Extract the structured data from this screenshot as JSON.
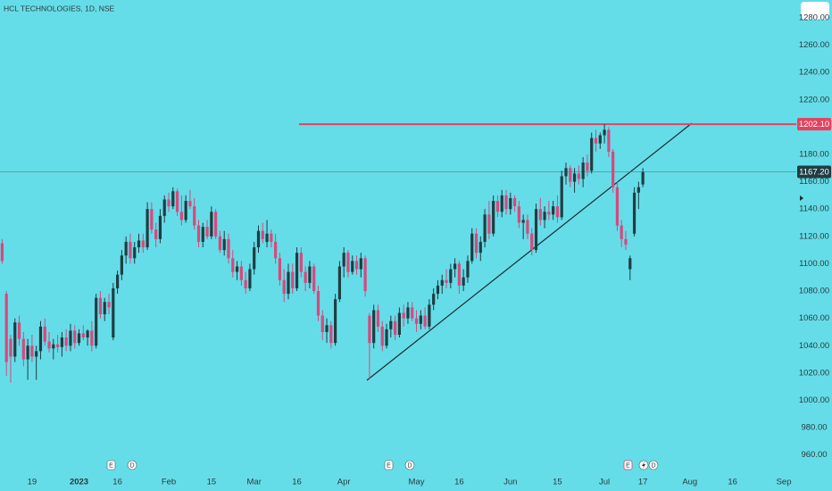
{
  "chart_data": {
    "type": "candlestick",
    "title": "HCL TECHNOLOGIES, 1D, NSE",
    "categories": [
      null,
      null,
      null,
      null,
      null,
      null,
      null,
      "19",
      null,
      null,
      null,
      null,
      null,
      null,
      null,
      null,
      null,
      null,
      "2023",
      null,
      null,
      null,
      null,
      null,
      null,
      null,
      null,
      "16",
      null,
      null,
      null,
      null,
      null,
      null,
      null,
      null,
      null,
      null,
      null,
      "Feb",
      null,
      null,
      null,
      null,
      null,
      null,
      null,
      null,
      null,
      "15",
      null,
      null,
      null,
      null,
      null,
      null,
      null,
      null,
      null,
      "Mar",
      null,
      null,
      null,
      null,
      null,
      null,
      null,
      null,
      null,
      "16",
      null,
      null,
      null,
      null,
      null,
      null,
      null,
      null,
      null,
      null,
      "Apr",
      null,
      null,
      null,
      null,
      null,
      null,
      null,
      null,
      null,
      null,
      null,
      null,
      null,
      null,
      null,
      null,
      "May",
      null,
      null,
      null,
      null,
      null,
      null,
      null,
      null,
      null,
      "16",
      null,
      null,
      null,
      null,
      null,
      null,
      null,
      null,
      null,
      null,
      null,
      "Jun",
      null,
      null,
      null,
      null,
      null,
      null,
      null,
      null,
      null,
      null,
      "15",
      null,
      null,
      null,
      null,
      null,
      null,
      null,
      null,
      null,
      null,
      "Jul",
      null,
      null,
      null,
      null,
      null,
      null,
      null,
      null,
      "17",
      null,
      null,
      null,
      null,
      null,
      null,
      null,
      null,
      null,
      null,
      "Aug",
      null,
      null,
      null,
      null,
      null,
      null,
      null,
      null,
      null,
      "16",
      null,
      null,
      null,
      null,
      null,
      null,
      null,
      null,
      null,
      null,
      null,
      "Sep",
      null,
      null
    ],
    "open": [
      1115,
      1078,
      1045,
      1032,
      1057,
      1045,
      1030,
      1040,
      1032,
      1036,
      1054,
      1043,
      1038,
      1041,
      1039,
      1046,
      1040,
      1051,
      1042,
      1049,
      1046,
      1051,
      1040,
      1075,
      1063,
      1072,
      1046,
      1082,
      1092,
      1106,
      1116,
      1104,
      1112,
      1117,
      1112,
      1140,
      1125,
      1118,
      1135,
      1147,
      1142,
      1153,
      1138,
      1132,
      1146,
      1142,
      1128,
      1116,
      1127,
      1120,
      1138,
      1120,
      1110,
      1118,
      1104,
      1094,
      1098,
      1088,
      1082,
      1096,
      1112,
      1124,
      1116,
      1122,
      1116,
      1104,
      1088,
      1078,
      1094,
      1082,
      1108,
      1094,
      1086,
      1098,
      1080,
      1062,
      1050,
      1055,
      1042,
      1074,
      1098,
      1108,
      1094,
      1102,
      1096,
      1104,
      1062,
      1042,
      1066,
      1054,
      1040,
      1052,
      1058,
      1048,
      1064,
      1060,
      1068,
      1060,
      1056,
      1062,
      1054,
      1070,
      1078,
      1084,
      1088,
      1086,
      1096,
      1100,
      1084,
      1090,
      1102,
      1122,
      1108,
      1116,
      1136,
      1122,
      1146,
      1138,
      1150,
      1140,
      1148,
      1142,
      1130,
      1132,
      1122,
      1110,
      1140,
      1132,
      1138,
      1136,
      1142,
      1134,
      1164,
      1170,
      1160,
      1166,
      1162,
      1174,
      1168,
      1192,
      1188,
      1194,
      1198,
      1182,
      1156,
      1128,
      1118,
      1096,
      1122,
      1152,
      1158,
      null,
      null,
      null,
      null,
      null,
      null,
      null,
      null,
      null,
      null,
      null,
      null,
      null,
      null,
      null,
      null,
      null,
      null,
      null,
      null,
      null,
      null,
      null,
      null,
      null,
      null,
      null,
      null,
      null,
      null,
      null,
      null,
      null,
      null,
      null
    ],
    "high": [
      1118,
      1080,
      1048,
      1060,
      1062,
      1050,
      1045,
      1048,
      1040,
      1058,
      1060,
      1050,
      1045,
      1048,
      1050,
      1052,
      1056,
      1055,
      1052,
      1055,
      1052,
      1058,
      1078,
      1080,
      1075,
      1078,
      1086,
      1095,
      1110,
      1120,
      1122,
      1116,
      1122,
      1122,
      1145,
      1145,
      1130,
      1140,
      1150,
      1152,
      1156,
      1155,
      1150,
      1150,
      1154,
      1148,
      1132,
      1130,
      1132,
      1142,
      1140,
      1124,
      1124,
      1122,
      1110,
      1102,
      1102,
      1094,
      1100,
      1116,
      1128,
      1130,
      1132,
      1125,
      1122,
      1108,
      1096,
      1100,
      1100,
      1112,
      1112,
      1098,
      1102,
      1100,
      1084,
      1066,
      1060,
      1058,
      1078,
      1102,
      1112,
      1110,
      1106,
      1106,
      1108,
      1106,
      1064,
      1070,
      1070,
      1058,
      1056,
      1062,
      1062,
      1068,
      1070,
      1072,
      1072,
      1066,
      1066,
      1068,
      1074,
      1082,
      1088,
      1092,
      1096,
      1100,
      1104,
      1102,
      1096,
      1106,
      1126,
      1126,
      1120,
      1140,
      1146,
      1150,
      1150,
      1154,
      1154,
      1152,
      1150,
      1146,
      1136,
      1136,
      1126,
      1144,
      1148,
      1142,
      1146,
      1146,
      1150,
      1168,
      1174,
      1172,
      1170,
      1172,
      1178,
      1180,
      1196,
      1198,
      1196,
      1202.1,
      1200,
      1184,
      1160,
      1132,
      1124,
      1106,
      1156,
      1160,
      1170,
      null,
      null,
      null,
      null,
      null,
      null,
      null,
      null,
      null,
      null,
      null,
      null,
      null,
      null,
      null,
      null,
      null,
      null,
      null,
      null,
      null,
      null,
      null,
      null,
      null,
      null,
      null,
      null,
      null,
      null,
      null,
      null,
      null,
      null,
      null
    ],
    "low": [
      1100,
      1018,
      1013,
      1028,
      1040,
      1025,
      1015,
      1028,
      1015,
      1030,
      1040,
      1035,
      1030,
      1035,
      1032,
      1036,
      1036,
      1038,
      1040,
      1044,
      1040,
      1036,
      1038,
      1060,
      1058,
      1063,
      1044,
      1078,
      1088,
      1100,
      1100,
      1100,
      1108,
      1108,
      1110,
      1122,
      1112,
      1115,
      1130,
      1138,
      1140,
      1135,
      1128,
      1130,
      1140,
      1125,
      1112,
      1112,
      1118,
      1118,
      1118,
      1108,
      1106,
      1100,
      1090,
      1088,
      1084,
      1078,
      1080,
      1092,
      1108,
      1115,
      1112,
      1112,
      1100,
      1084,
      1072,
      1074,
      1078,
      1080,
      1090,
      1080,
      1082,
      1078,
      1058,
      1044,
      1042,
      1038,
      1040,
      1072,
      1090,
      1090,
      1092,
      1092,
      1090,
      1076,
      1016,
      1038,
      1050,
      1036,
      1038,
      1046,
      1044,
      1046,
      1054,
      1056,
      1058,
      1050,
      1052,
      1052,
      1052,
      1066,
      1074,
      1078,
      1082,
      1082,
      1090,
      1078,
      1080,
      1086,
      1100,
      1104,
      1102,
      1112,
      1118,
      1120,
      1134,
      1134,
      1136,
      1136,
      1138,
      1126,
      1118,
      1118,
      1106,
      1108,
      1128,
      1126,
      1132,
      1132,
      1130,
      1132,
      1158,
      1156,
      1152,
      1158,
      1156,
      1164,
      1166,
      1182,
      1184,
      1188,
      1178,
      1152,
      1124,
      1112,
      1110,
      1088,
      1120,
      1140,
      1156,
      null,
      null,
      null,
      null,
      null,
      null,
      null,
      null,
      null,
      null,
      null,
      null,
      null,
      null,
      null,
      null,
      null,
      null,
      null,
      null,
      null,
      null,
      null,
      null,
      null,
      null,
      null,
      null,
      null,
      null,
      null,
      null,
      null,
      null,
      null
    ],
    "close": [
      1102,
      1028,
      1032,
      1057,
      1045,
      1030,
      1040,
      1032,
      1036,
      1054,
      1043,
      1038,
      1041,
      1039,
      1046,
      1040,
      1051,
      1042,
      1049,
      1046,
      1051,
      1040,
      1075,
      1063,
      1072,
      1068,
      1082,
      1092,
      1106,
      1116,
      1104,
      1112,
      1117,
      1112,
      1140,
      1125,
      1118,
      1135,
      1147,
      1142,
      1153,
      1138,
      1132,
      1146,
      1142,
      1128,
      1116,
      1127,
      1120,
      1138,
      1120,
      1110,
      1118,
      1104,
      1094,
      1098,
      1088,
      1082,
      1096,
      1112,
      1124,
      1118,
      1122,
      1116,
      1104,
      1088,
      1078,
      1094,
      1082,
      1108,
      1094,
      1086,
      1098,
      1080,
      1062,
      1050,
      1055,
      1042,
      1074,
      1098,
      1108,
      1094,
      1102,
      1096,
      1104,
      1080,
      1042,
      1066,
      1054,
      1040,
      1052,
      1058,
      1048,
      1064,
      1060,
      1068,
      1060,
      1056,
      1062,
      1054,
      1070,
      1078,
      1084,
      1088,
      1086,
      1096,
      1100,
      1084,
      1090,
      1102,
      1122,
      1108,
      1116,
      1136,
      1122,
      1146,
      1138,
      1150,
      1140,
      1148,
      1142,
      1130,
      1132,
      1122,
      1110,
      1140,
      1132,
      1138,
      1136,
      1142,
      1134,
      1164,
      1170,
      1160,
      1166,
      1162,
      1174,
      1168,
      1192,
      1188,
      1194,
      1198,
      1182,
      1156,
      1128,
      1118,
      1114,
      1104,
      1152,
      1156,
      1167.2,
      null,
      null,
      null,
      null,
      null,
      null,
      null,
      null,
      null,
      null,
      null,
      null,
      null,
      null,
      null,
      null,
      null,
      null,
      null,
      null,
      null,
      null,
      null,
      null,
      null,
      null,
      null,
      null,
      null,
      null,
      null,
      null,
      null,
      null,
      null
    ],
    "up_color": "#1f3d42",
    "down_color": "#d8487c",
    "ylim": [
      950,
      1293
    ],
    "yticks": [
      {
        "value": 960,
        "label": "960.00"
      },
      {
        "value": 980,
        "label": "980.00"
      },
      {
        "value": 1000,
        "label": "1000.00"
      },
      {
        "value": 1020,
        "label": "1020.00"
      },
      {
        "value": 1040,
        "label": "1040.00"
      },
      {
        "value": 1060,
        "label": "1060.00"
      },
      {
        "value": 1080,
        "label": "1080.00"
      },
      {
        "value": 1100,
        "label": "1100.00"
      },
      {
        "value": 1120,
        "label": "1120.00"
      },
      {
        "value": 1140,
        "label": "1140.00"
      },
      {
        "value": 1160,
        "label": "1160.00"
      },
      {
        "value": 1180,
        "label": "1180.00"
      },
      {
        "value": 1200,
        "label": "1200.00"
      },
      {
        "value": 1220,
        "label": "1220.00"
      },
      {
        "value": 1240,
        "label": "1240.00"
      },
      {
        "value": 1260,
        "label": "1260.00"
      },
      {
        "value": 1280,
        "label": "1280.00"
      }
    ],
    "hline": {
      "value": 1202.1,
      "label": "1202.10",
      "color": "#e8405f"
    },
    "last_price": {
      "value": 1167.2,
      "label": "1167.20"
    },
    "events": [
      "E",
      "D",
      "E",
      "D",
      "E",
      "D"
    ]
  }
}
